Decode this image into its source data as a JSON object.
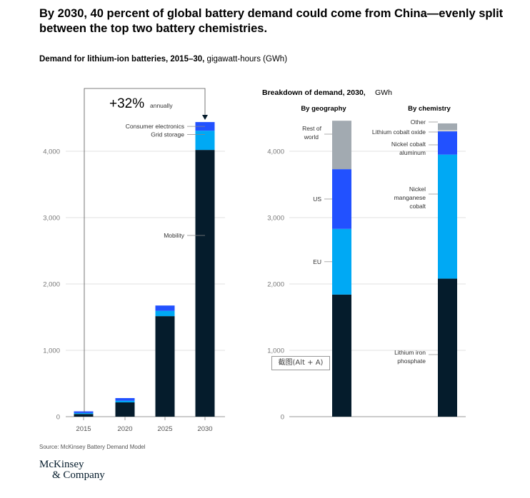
{
  "title": "By 2030, 40 percent of global battery demand could come from China—evenly split between the top two battery chemistries.",
  "left_subtitle": {
    "bold": "Demand for lithium-ion batteries, 2015–30,",
    "normal": "gigawatt-hours (GWh)"
  },
  "right_subtitle": {
    "bold": "Breakdown of demand, 2030,",
    "normal": "GWh"
  },
  "growth_label": {
    "value": "+32%",
    "unit": "annually"
  },
  "source": "Source: McKinsey Battery Demand Model",
  "logo": {
    "line1": "McKinsey",
    "line2": "& Company"
  },
  "watermark": "截图(Alt + A)",
  "colors": {
    "navy": "#051c2c",
    "cyan": "#00a9f4",
    "blue": "#2251ff",
    "gray": "#a2aab1",
    "light_gray": "#d0d0d0"
  },
  "chart_data": [
    {
      "type": "bar",
      "stacked": true,
      "title": "Demand for lithium-ion batteries, 2015–30, gigawatt-hours (GWh)",
      "categories": [
        "2015",
        "2020",
        "2025",
        "2030"
      ],
      "series": [
        {
          "name": "Mobility",
          "color": "#051c2c",
          "values": [
            40,
            215,
            1515,
            4020
          ]
        },
        {
          "name": "Grid storage",
          "color": "#00a9f4",
          "values": [
            15,
            25,
            80,
            290
          ]
        },
        {
          "name": "Consumer electronics",
          "color": "#2251ff",
          "values": [
            25,
            40,
            80,
            130
          ]
        }
      ],
      "yticks": [
        "0",
        "1,000",
        "2,000",
        "3,000",
        "4,000"
      ],
      "ylim": [
        0,
        4500
      ],
      "grid": true
    },
    {
      "type": "bar",
      "stacked": true,
      "title": "Breakdown of demand, 2030, GWh",
      "yticks": [
        "0",
        "1,000",
        "2,000",
        "3,000",
        "4,000"
      ],
      "ylim": [
        0,
        4500
      ],
      "grid": true,
      "bars": [
        {
          "label": "By geography",
          "segments": [
            {
              "name": "EU",
              "color": "#00a9f4",
              "value": 990
            },
            {
              "name": "US",
              "color": "#2251ff",
              "value": 900
            },
            {
              "name": "Rest of world",
              "color": "#a2aab1",
              "value": 730
            }
          ],
          "base_segment": {
            "name": "",
            "color": "#051c2c",
            "value": 1840
          }
        },
        {
          "label": "By chemistry",
          "segments": [
            {
              "name": "Lithium iron phosphate",
              "color": "#051c2c",
              "value": 2080
            },
            {
              "name": "Nickel manganese cobalt",
              "color": "#00a9f4",
              "value": 1870
            },
            {
              "name": "Nickel cobalt aluminum",
              "color": "#2251ff",
              "value": 350
            },
            {
              "name": "Lithium cobalt oxide",
              "color": "#d0d0d0",
              "value": 20
            },
            {
              "name": "Other",
              "color": "#a2aab1",
              "value": 100
            }
          ]
        }
      ]
    }
  ]
}
